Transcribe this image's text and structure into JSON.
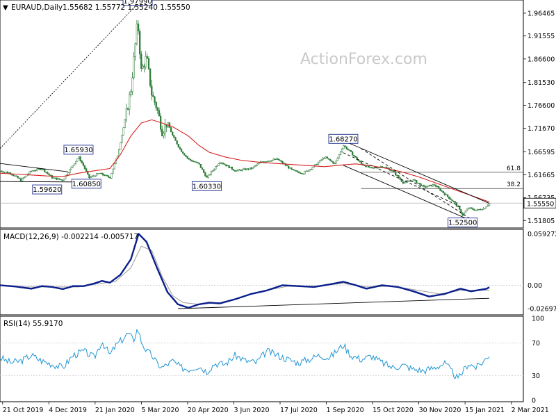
{
  "header": {
    "symbol": "EURAUD,Daily",
    "ohlc": "1.55682 1.55772 1.55240 1.55550",
    "caret": "▼"
  },
  "watermark": "ActionForex.com",
  "colors": {
    "price": "#2f7d3a",
    "ma": "#d62020",
    "macd": "#0a1e8c",
    "signal": "#9a9a9a",
    "rsi": "#2196d3",
    "trend": "#000000",
    "grid": "#c8c8c8",
    "label_border": "#1f2f8f"
  },
  "x_labels": [
    "21 Oct 2019",
    "4 Dec 2019",
    "21 Jan 2020",
    "5 Mar 2020",
    "20 Apr 2020",
    "3 Jun 2020",
    "17 Jul 2020",
    "1 Sep 2020",
    "15 Oct 2020",
    "30 Nov 2020",
    "15 Jan 2021",
    "2 Mar 2021"
  ],
  "chart_data": [
    {
      "type": "candlestick",
      "name": "price-pane",
      "y_ticks": [
        "1.96465",
        "1.91555",
        "1.86600",
        "1.81530",
        "1.76600",
        "1.71670",
        "1.66595",
        "1.61665",
        "1.56735",
        "1.51805"
      ],
      "y_range": [
        1.505,
        1.99
      ],
      "last_price": "1.55550",
      "fib_levels": [
        {
          "label": "61.8",
          "value": 1.622
        },
        {
          "label": "38.2",
          "value": 1.587
        }
      ],
      "annotations": [
        {
          "text": "1.97990",
          "x": 0.263,
          "value": 1.9799,
          "pos": "above"
        },
        {
          "text": "1.65930",
          "x": 0.15,
          "value": 1.6593,
          "pos": "above"
        },
        {
          "text": "1.59620",
          "x": 0.09,
          "value": 1.5962,
          "pos": "below"
        },
        {
          "text": "1.60850",
          "x": 0.165,
          "value": 1.6085,
          "pos": "below"
        },
        {
          "text": "1.60330",
          "x": 0.395,
          "value": 1.6033,
          "pos": "below"
        },
        {
          "text": "1.68270",
          "x": 0.656,
          "value": 1.6827,
          "pos": "above"
        },
        {
          "text": "1.52500",
          "x": 0.884,
          "value": 1.525,
          "pos": "below"
        }
      ],
      "close_path": [
        [
          0,
          1.625
        ],
        [
          0.02,
          1.62
        ],
        [
          0.04,
          1.605
        ],
        [
          0.06,
          1.625
        ],
        [
          0.08,
          1.63
        ],
        [
          0.1,
          1.61
        ],
        [
          0.12,
          1.605
        ],
        [
          0.135,
          1.63
        ],
        [
          0.15,
          1.655
        ],
        [
          0.16,
          1.635
        ],
        [
          0.17,
          1.61
        ],
        [
          0.19,
          1.62
        ],
        [
          0.21,
          1.61
        ],
        [
          0.225,
          1.66
        ],
        [
          0.24,
          1.74
        ],
        [
          0.25,
          1.8
        ],
        [
          0.258,
          1.89
        ],
        [
          0.263,
          1.95
        ],
        [
          0.27,
          1.84
        ],
        [
          0.28,
          1.87
        ],
        [
          0.29,
          1.79
        ],
        [
          0.3,
          1.76
        ],
        [
          0.31,
          1.71
        ],
        [
          0.32,
          1.73
        ],
        [
          0.33,
          1.7
        ],
        [
          0.345,
          1.67
        ],
        [
          0.36,
          1.65
        ],
        [
          0.38,
          1.64
        ],
        [
          0.395,
          1.61
        ],
        [
          0.42,
          1.645
        ],
        [
          0.45,
          1.625
        ],
        [
          0.48,
          1.63
        ],
        [
          0.5,
          1.645
        ],
        [
          0.53,
          1.65
        ],
        [
          0.56,
          1.625
        ],
        [
          0.58,
          1.62
        ],
        [
          0.6,
          1.635
        ],
        [
          0.62,
          1.655
        ],
        [
          0.64,
          1.64
        ],
        [
          0.656,
          1.68
        ],
        [
          0.67,
          1.665
        ],
        [
          0.69,
          1.64
        ],
        [
          0.71,
          1.63
        ],
        [
          0.73,
          1.635
        ],
        [
          0.75,
          1.625
        ],
        [
          0.77,
          1.6
        ],
        [
          0.79,
          1.605
        ],
        [
          0.81,
          1.59
        ],
        [
          0.83,
          1.595
        ],
        [
          0.85,
          1.575
        ],
        [
          0.87,
          1.555
        ],
        [
          0.884,
          1.53
        ],
        [
          0.895,
          1.545
        ],
        [
          0.91,
          1.54
        ],
        [
          0.925,
          1.545
        ],
        [
          0.935,
          1.5555
        ]
      ],
      "ma_path": [
        [
          0,
          1.62
        ],
        [
          0.03,
          1.618
        ],
        [
          0.06,
          1.616
        ],
        [
          0.09,
          1.614
        ],
        [
          0.12,
          1.613
        ],
        [
          0.15,
          1.62
        ],
        [
          0.18,
          1.625
        ],
        [
          0.21,
          1.63
        ],
        [
          0.23,
          1.66
        ],
        [
          0.25,
          1.7
        ],
        [
          0.27,
          1.728
        ],
        [
          0.29,
          1.735
        ],
        [
          0.31,
          1.728
        ],
        [
          0.33,
          1.72
        ],
        [
          0.36,
          1.7
        ],
        [
          0.38,
          1.68
        ],
        [
          0.4,
          1.665
        ],
        [
          0.43,
          1.655
        ],
        [
          0.46,
          1.648
        ],
        [
          0.5,
          1.643
        ],
        [
          0.54,
          1.64
        ],
        [
          0.58,
          1.637
        ],
        [
          0.62,
          1.634
        ],
        [
          0.656,
          1.638
        ],
        [
          0.68,
          1.64
        ],
        [
          0.71,
          1.636
        ],
        [
          0.74,
          1.63
        ],
        [
          0.77,
          1.622
        ],
        [
          0.8,
          1.612
        ],
        [
          0.83,
          1.6
        ],
        [
          0.86,
          1.588
        ],
        [
          0.89,
          1.576
        ],
        [
          0.91,
          1.568
        ],
        [
          0.935,
          1.558
        ]
      ],
      "trendlines": [
        {
          "style": "dotted",
          "pts": [
            [
              0,
              1.673
            ],
            [
              0.263,
              1.985
            ]
          ]
        },
        {
          "style": "solid",
          "pts": [
            [
              0,
              1.641
            ],
            [
              0.13,
              1.623
            ]
          ]
        },
        {
          "style": "solid",
          "pts": [
            [
              0,
              1.602
            ],
            [
              0.16,
              1.601
            ]
          ]
        },
        {
          "style": "solid",
          "pts": [
            [
              0.656,
              1.69
            ],
            [
              0.935,
              1.555
            ]
          ]
        },
        {
          "style": "solid",
          "pts": [
            [
              0.656,
              1.637
            ],
            [
              0.9,
              1.518
            ]
          ]
        },
        {
          "style": "dashed",
          "pts": [
            [
              0.69,
              1.673
            ],
            [
              0.9,
              1.521
            ]
          ]
        },
        {
          "style": "dashed",
          "pts": [
            [
              0.656,
              1.664
            ],
            [
              0.88,
              1.548
            ]
          ]
        }
      ]
    },
    {
      "type": "line",
      "name": "macd-pane",
      "title": "MACD(12,26,9) -0.002214 -0.005717",
      "y_ticks": [
        "0.059272",
        "0.00",
        "-0.026978"
      ],
      "y_range": [
        -0.0325,
        0.062
      ],
      "zero": 0,
      "series": [
        {
          "name": "MACD",
          "values": [
            [
              0,
              0
            ],
            [
              0.03,
              -0.0015
            ],
            [
              0.06,
              -0.004
            ],
            [
              0.08,
              -0.001
            ],
            [
              0.1,
              -0.002
            ],
            [
              0.12,
              -0.0045
            ],
            [
              0.14,
              -0.001
            ],
            [
              0.16,
              -0.001
            ],
            [
              0.18,
              0.002
            ],
            [
              0.195,
              0.005
            ],
            [
              0.21,
              0.003
            ],
            [
              0.23,
              0.012
            ],
            [
              0.25,
              0.03
            ],
            [
              0.265,
              0.0593
            ],
            [
              0.28,
              0.05
            ],
            [
              0.3,
              0.02
            ],
            [
              0.32,
              -0.008
            ],
            [
              0.34,
              -0.022
            ],
            [
              0.36,
              -0.026
            ],
            [
              0.38,
              -0.022
            ],
            [
              0.4,
              -0.02
            ],
            [
              0.42,
              -0.021
            ],
            [
              0.45,
              -0.016
            ],
            [
              0.48,
              -0.01
            ],
            [
              0.51,
              -0.006
            ],
            [
              0.54,
              0.0
            ],
            [
              0.57,
              -0.001
            ],
            [
              0.6,
              -0.002
            ],
            [
              0.63,
              0.001
            ],
            [
              0.656,
              0.004
            ],
            [
              0.68,
              0.0
            ],
            [
              0.7,
              -0.004
            ],
            [
              0.73,
              0.0
            ],
            [
              0.76,
              -0.002
            ],
            [
              0.79,
              -0.007
            ],
            [
              0.82,
              -0.013
            ],
            [
              0.85,
              -0.01
            ],
            [
              0.88,
              -0.004
            ],
            [
              0.9,
              -0.007
            ],
            [
              0.93,
              -0.004
            ],
            [
              0.935,
              -0.0022
            ]
          ]
        },
        {
          "name": "Signal",
          "values": [
            [
              0,
              0
            ],
            [
              0.05,
              -0.002
            ],
            [
              0.1,
              -0.002
            ],
            [
              0.15,
              -0.002
            ],
            [
              0.19,
              0.002
            ],
            [
              0.22,
              0.004
            ],
            [
              0.25,
              0.02
            ],
            [
              0.27,
              0.045
            ],
            [
              0.29,
              0.04
            ],
            [
              0.31,
              0.01
            ],
            [
              0.33,
              -0.012
            ],
            [
              0.35,
              -0.02
            ],
            [
              0.38,
              -0.022
            ],
            [
              0.42,
              -0.02
            ],
            [
              0.46,
              -0.014
            ],
            [
              0.5,
              -0.007
            ],
            [
              0.55,
              -0.001
            ],
            [
              0.6,
              -0.001
            ],
            [
              0.656,
              0.002
            ],
            [
              0.7,
              -0.002
            ],
            [
              0.75,
              -0.001
            ],
            [
              0.8,
              -0.006
            ],
            [
              0.84,
              -0.01
            ],
            [
              0.88,
              -0.006
            ],
            [
              0.935,
              -0.0057
            ]
          ]
        }
      ],
      "trendline": [
        [
          0.34,
          -0.027
        ],
        [
          0.935,
          -0.015
        ]
      ]
    },
    {
      "type": "line",
      "name": "rsi-pane",
      "title": "RSI(14) 55.9170",
      "y_ticks": [
        "100",
        "70",
        "30",
        "0"
      ],
      "y_range": [
        0,
        100
      ],
      "levels": [
        70,
        30
      ],
      "values": [
        [
          0,
          52
        ],
        [
          0.02,
          46
        ],
        [
          0.04,
          48
        ],
        [
          0.06,
          55
        ],
        [
          0.08,
          48
        ],
        [
          0.1,
          44
        ],
        [
          0.12,
          40
        ],
        [
          0.14,
          55
        ],
        [
          0.16,
          60
        ],
        [
          0.18,
          52
        ],
        [
          0.195,
          72
        ],
        [
          0.21,
          55
        ],
        [
          0.22,
          66
        ],
        [
          0.235,
          75
        ],
        [
          0.245,
          82
        ],
        [
          0.255,
          73
        ],
        [
          0.263,
          88
        ],
        [
          0.27,
          72
        ],
        [
          0.28,
          60
        ],
        [
          0.29,
          55
        ],
        [
          0.3,
          45
        ],
        [
          0.31,
          40
        ],
        [
          0.32,
          44
        ],
        [
          0.33,
          48
        ],
        [
          0.345,
          40
        ],
        [
          0.36,
          38
        ],
        [
          0.38,
          42
        ],
        [
          0.395,
          35
        ],
        [
          0.41,
          45
        ],
        [
          0.43,
          44
        ],
        [
          0.45,
          55
        ],
        [
          0.47,
          48
        ],
        [
          0.49,
          46
        ],
        [
          0.51,
          60
        ],
        [
          0.53,
          55
        ],
        [
          0.55,
          50
        ],
        [
          0.57,
          46
        ],
        [
          0.59,
          50
        ],
        [
          0.61,
          55
        ],
        [
          0.63,
          52
        ],
        [
          0.656,
          68
        ],
        [
          0.67,
          55
        ],
        [
          0.69,
          50
        ],
        [
          0.71,
          54
        ],
        [
          0.73,
          46
        ],
        [
          0.75,
          40
        ],
        [
          0.77,
          43
        ],
        [
          0.79,
          38
        ],
        [
          0.81,
          36
        ],
        [
          0.83,
          40
        ],
        [
          0.85,
          45
        ],
        [
          0.87,
          30
        ],
        [
          0.875,
          25
        ],
        [
          0.884,
          35
        ],
        [
          0.895,
          45
        ],
        [
          0.91,
          40
        ],
        [
          0.925,
          48
        ],
        [
          0.935,
          56
        ]
      ]
    }
  ]
}
